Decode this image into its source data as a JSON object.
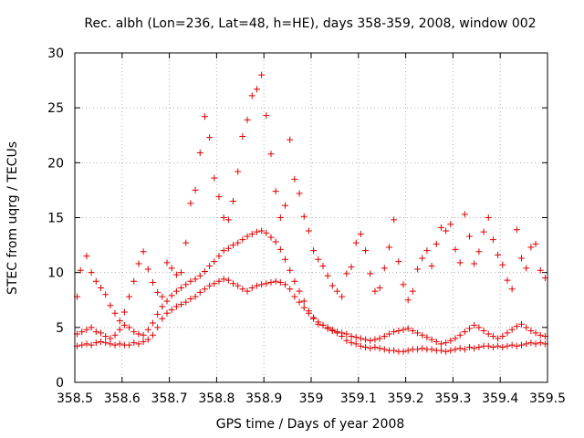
{
  "chart_data": {
    "type": "scatter",
    "title": "Rec. albh (Lon=236, Lat=48, h=HE), days 358-359, 2008, window 002",
    "xlabel": "GPS time / Days of year 2008",
    "ylabel": "STEC from uqrg / TECUs",
    "xlim": [
      358.5,
      359.5
    ],
    "ylim": [
      0,
      30
    ],
    "x_ticks": [
      358.5,
      358.6,
      358.7,
      358.8,
      358.9,
      359,
      359.1,
      359.2,
      359.3,
      359.4,
      359.5
    ],
    "x_tick_labels": [
      "358.5",
      "358.6",
      "358.7",
      "358.8",
      "358.9",
      "359",
      "359.1",
      "359.2",
      "359.3",
      "359.4",
      "359.5"
    ],
    "y_ticks": [
      0,
      5,
      10,
      15,
      20,
      25,
      30
    ],
    "y_tick_labels": [
      "0",
      "5",
      "10",
      "15",
      "20",
      "25",
      "30"
    ],
    "grid": true,
    "marker": "+",
    "color": "#e00000",
    "series": [
      {
        "points": [
          [
            358.505,
            3.3
          ],
          [
            358.515,
            3.4
          ],
          [
            358.525,
            3.5
          ],
          [
            358.535,
            3.4
          ],
          [
            358.545,
            3.6
          ],
          [
            358.555,
            3.7
          ],
          [
            358.565,
            3.6
          ],
          [
            358.575,
            3.5
          ],
          [
            358.585,
            3.4
          ],
          [
            358.595,
            3.5
          ],
          [
            358.605,
            3.4
          ],
          [
            358.615,
            3.4
          ],
          [
            358.625,
            3.6
          ],
          [
            358.635,
            3.5
          ],
          [
            358.645,
            3.7
          ],
          [
            358.655,
            3.9
          ],
          [
            358.665,
            4.3
          ],
          [
            358.675,
            5.0
          ],
          [
            358.685,
            5.8
          ],
          [
            358.695,
            6.3
          ],
          [
            358.705,
            6.6
          ],
          [
            358.715,
            6.9
          ],
          [
            358.725,
            7.1
          ],
          [
            358.735,
            7.3
          ],
          [
            358.745,
            7.6
          ],
          [
            358.755,
            7.8
          ],
          [
            358.765,
            8.2
          ],
          [
            358.775,
            8.5
          ],
          [
            358.785,
            8.8
          ],
          [
            358.795,
            9.0
          ],
          [
            358.805,
            9.2
          ],
          [
            358.815,
            9.4
          ],
          [
            358.825,
            9.3
          ],
          [
            358.835,
            9.0
          ],
          [
            358.845,
            8.8
          ],
          [
            358.855,
            8.5
          ],
          [
            358.865,
            8.3
          ],
          [
            358.875,
            8.6
          ],
          [
            358.885,
            8.8
          ],
          [
            358.895,
            8.9
          ],
          [
            358.905,
            9.0
          ],
          [
            358.915,
            9.1
          ],
          [
            358.925,
            9.2
          ],
          [
            358.935,
            9.1
          ],
          [
            358.945,
            8.9
          ],
          [
            358.955,
            8.5
          ],
          [
            358.965,
            7.8
          ],
          [
            358.975,
            7.3
          ],
          [
            358.985,
            6.8
          ],
          [
            358.995,
            6.3
          ],
          [
            359.005,
            5.8
          ],
          [
            359.015,
            5.3
          ],
          [
            359.025,
            5.2
          ],
          [
            359.035,
            4.9
          ],
          [
            359.045,
            4.7
          ],
          [
            359.055,
            4.5
          ],
          [
            359.065,
            4.2
          ],
          [
            359.075,
            3.8
          ],
          [
            359.085,
            3.6
          ],
          [
            359.095,
            3.5
          ],
          [
            359.105,
            3.3
          ],
          [
            359.115,
            3.2
          ],
          [
            359.125,
            3.1
          ],
          [
            359.135,
            3.2
          ],
          [
            359.145,
            3.1
          ],
          [
            359.155,
            3.0
          ],
          [
            359.165,
            2.9
          ],
          [
            359.175,
            2.9
          ],
          [
            359.185,
            2.8
          ],
          [
            359.195,
            2.8
          ],
          [
            359.205,
            2.9
          ],
          [
            359.215,
            3.0
          ],
          [
            359.225,
            3.0
          ],
          [
            359.235,
            3.1
          ],
          [
            359.245,
            3.0
          ],
          [
            359.255,
            3.0
          ],
          [
            359.265,
            2.9
          ],
          [
            359.275,
            2.9
          ],
          [
            359.285,
            2.8
          ],
          [
            359.295,
            2.9
          ],
          [
            359.305,
            3.0
          ],
          [
            359.315,
            3.1
          ],
          [
            359.325,
            3.0
          ],
          [
            359.335,
            3.2
          ],
          [
            359.345,
            3.1
          ],
          [
            359.355,
            3.2
          ],
          [
            359.365,
            3.3
          ],
          [
            359.375,
            3.3
          ],
          [
            359.385,
            3.2
          ],
          [
            359.395,
            3.3
          ],
          [
            359.405,
            3.2
          ],
          [
            359.415,
            3.3
          ],
          [
            359.425,
            3.4
          ],
          [
            359.435,
            3.3
          ],
          [
            359.445,
            3.4
          ],
          [
            359.455,
            3.5
          ],
          [
            359.465,
            3.6
          ],
          [
            359.475,
            3.5
          ],
          [
            359.485,
            3.6
          ],
          [
            359.495,
            3.5
          ],
          [
            358.505,
            4.4
          ],
          [
            358.515,
            4.6
          ],
          [
            358.525,
            4.8
          ],
          [
            358.535,
            5.0
          ],
          [
            358.545,
            4.6
          ],
          [
            358.555,
            4.5
          ],
          [
            358.565,
            4.2
          ],
          [
            358.575,
            4.0
          ],
          [
            358.585,
            4.3
          ],
          [
            358.595,
            4.8
          ],
          [
            358.605,
            5.2
          ],
          [
            358.615,
            5.0
          ],
          [
            358.625,
            4.6
          ],
          [
            358.635,
            4.4
          ],
          [
            358.645,
            4.3
          ],
          [
            358.655,
            4.8
          ],
          [
            358.665,
            5.4
          ],
          [
            358.675,
            6.2
          ],
          [
            358.685,
            6.9
          ],
          [
            358.695,
            7.4
          ],
          [
            358.705,
            7.9
          ],
          [
            358.715,
            8.3
          ],
          [
            358.725,
            8.6
          ],
          [
            358.735,
            8.9
          ],
          [
            358.745,
            9.2
          ],
          [
            358.755,
            9.4
          ],
          [
            358.765,
            9.7
          ],
          [
            358.775,
            10.1
          ],
          [
            358.785,
            10.6
          ],
          [
            358.795,
            11.0
          ],
          [
            358.805,
            11.5
          ],
          [
            358.815,
            12.0
          ],
          [
            358.825,
            12.2
          ],
          [
            358.835,
            12.5
          ],
          [
            358.845,
            12.7
          ],
          [
            358.855,
            13.0
          ],
          [
            358.865,
            13.3
          ],
          [
            358.875,
            13.5
          ],
          [
            358.885,
            13.7
          ],
          [
            358.895,
            13.8
          ],
          [
            358.905,
            13.6
          ],
          [
            358.915,
            13.2
          ],
          [
            358.925,
            12.8
          ],
          [
            358.935,
            12.1
          ],
          [
            358.945,
            11.2
          ],
          [
            358.955,
            10.2
          ],
          [
            358.965,
            9.2
          ],
          [
            358.975,
            8.3
          ],
          [
            358.985,
            7.4
          ],
          [
            358.995,
            6.5
          ],
          [
            359.005,
            5.9
          ],
          [
            359.015,
            5.5
          ],
          [
            359.025,
            5.2
          ],
          [
            359.035,
            5.0
          ],
          [
            359.045,
            4.8
          ],
          [
            359.055,
            4.6
          ],
          [
            359.065,
            4.5
          ],
          [
            359.075,
            4.4
          ],
          [
            359.085,
            4.2
          ],
          [
            359.095,
            4.1
          ],
          [
            359.105,
            4.0
          ],
          [
            359.115,
            3.9
          ],
          [
            359.125,
            3.8
          ],
          [
            359.135,
            3.9
          ],
          [
            359.145,
            4.0
          ],
          [
            359.155,
            4.2
          ],
          [
            359.165,
            4.4
          ],
          [
            359.175,
            4.6
          ],
          [
            359.185,
            4.7
          ],
          [
            359.195,
            4.8
          ],
          [
            359.205,
            4.9
          ],
          [
            359.215,
            4.7
          ],
          [
            359.225,
            4.5
          ],
          [
            359.235,
            4.3
          ],
          [
            359.245,
            4.1
          ],
          [
            359.255,
            3.9
          ],
          [
            359.265,
            3.7
          ],
          [
            359.275,
            3.5
          ],
          [
            359.285,
            3.6
          ],
          [
            359.295,
            3.8
          ],
          [
            359.305,
            4.0
          ],
          [
            359.315,
            4.3
          ],
          [
            359.325,
            4.6
          ],
          [
            359.335,
            4.9
          ],
          [
            359.345,
            5.2
          ],
          [
            359.355,
            5.0
          ],
          [
            359.365,
            4.7
          ],
          [
            359.375,
            4.4
          ],
          [
            359.385,
            4.2
          ],
          [
            359.395,
            4.0
          ],
          [
            359.405,
            4.2
          ],
          [
            359.415,
            4.5
          ],
          [
            359.425,
            4.8
          ],
          [
            359.435,
            5.1
          ],
          [
            359.445,
            5.3
          ],
          [
            359.455,
            5.0
          ],
          [
            359.465,
            4.7
          ],
          [
            359.475,
            4.5
          ],
          [
            359.485,
            4.3
          ],
          [
            359.495,
            4.2
          ],
          [
            358.505,
            7.8
          ],
          [
            358.512,
            10.2
          ],
          [
            358.525,
            11.5
          ],
          [
            358.535,
            10.0
          ],
          [
            358.545,
            9.2
          ],
          [
            358.555,
            8.6
          ],
          [
            358.565,
            8.0
          ],
          [
            358.575,
            7.0
          ],
          [
            358.585,
            6.3
          ],
          [
            358.595,
            5.6
          ],
          [
            358.605,
            6.4
          ],
          [
            358.615,
            7.8
          ],
          [
            358.625,
            9.2
          ],
          [
            358.635,
            10.8
          ],
          [
            358.645,
            11.9
          ],
          [
            358.655,
            10.3
          ],
          [
            358.665,
            9.1
          ],
          [
            358.675,
            8.2
          ],
          [
            358.685,
            7.8
          ],
          [
            358.695,
            10.9
          ],
          [
            358.705,
            10.4
          ],
          [
            358.715,
            9.8
          ],
          [
            358.725,
            10.0
          ],
          [
            358.735,
            12.7
          ],
          [
            358.745,
            16.3
          ],
          [
            358.755,
            17.5
          ],
          [
            358.765,
            20.9
          ],
          [
            358.775,
            24.2
          ],
          [
            358.785,
            22.3
          ],
          [
            358.795,
            18.6
          ],
          [
            358.805,
            16.9
          ],
          [
            358.815,
            15.0
          ],
          [
            358.825,
            14.8
          ],
          [
            358.835,
            16.5
          ],
          [
            358.845,
            19.2
          ],
          [
            358.855,
            22.4
          ],
          [
            358.865,
            23.9
          ],
          [
            358.875,
            26.1
          ],
          [
            358.885,
            26.7
          ],
          [
            358.895,
            28.0
          ],
          [
            358.905,
            24.3
          ],
          [
            358.915,
            20.8
          ],
          [
            358.925,
            17.4
          ],
          [
            358.935,
            15.0
          ],
          [
            358.945,
            16.1
          ],
          [
            358.955,
            22.1
          ],
          [
            358.965,
            18.5
          ],
          [
            358.975,
            17.2
          ],
          [
            358.985,
            15.1
          ],
          [
            358.995,
            13.8
          ],
          [
            359.005,
            12.0
          ],
          [
            359.015,
            11.2
          ],
          [
            359.025,
            10.6
          ],
          [
            359.035,
            9.7
          ],
          [
            359.045,
            8.8
          ],
          [
            359.055,
            8.3
          ],
          [
            359.065,
            7.8
          ],
          [
            359.075,
            9.9
          ],
          [
            359.085,
            10.5
          ],
          [
            359.095,
            12.7
          ],
          [
            359.105,
            13.5
          ],
          [
            359.115,
            12.0
          ],
          [
            359.125,
            9.9
          ],
          [
            359.135,
            8.3
          ],
          [
            359.145,
            8.6
          ],
          [
            359.155,
            10.4
          ],
          [
            359.165,
            12.3
          ],
          [
            359.175,
            14.8
          ],
          [
            359.185,
            11.0
          ],
          [
            359.195,
            8.9
          ],
          [
            359.205,
            7.5
          ],
          [
            359.215,
            8.3
          ],
          [
            359.225,
            10.3
          ],
          [
            359.235,
            11.3
          ],
          [
            359.245,
            12.0
          ],
          [
            359.255,
            10.6
          ],
          [
            359.265,
            12.6
          ],
          [
            359.275,
            14.1
          ],
          [
            359.285,
            13.8
          ],
          [
            359.295,
            14.4
          ],
          [
            359.305,
            12.1
          ],
          [
            359.315,
            10.9
          ],
          [
            359.325,
            15.3
          ],
          [
            359.335,
            13.3
          ],
          [
            359.345,
            10.8
          ],
          [
            359.355,
            11.9
          ],
          [
            359.365,
            13.7
          ],
          [
            359.375,
            15.0
          ],
          [
            359.385,
            13.0
          ],
          [
            359.395,
            11.6
          ],
          [
            359.405,
            10.7
          ],
          [
            359.415,
            9.3
          ],
          [
            359.425,
            8.5
          ],
          [
            359.435,
            13.9
          ],
          [
            359.445,
            11.3
          ],
          [
            359.455,
            10.4
          ],
          [
            359.465,
            12.3
          ],
          [
            359.475,
            12.6
          ],
          [
            359.485,
            10.2
          ],
          [
            359.495,
            9.5
          ]
        ]
      }
    ]
  }
}
